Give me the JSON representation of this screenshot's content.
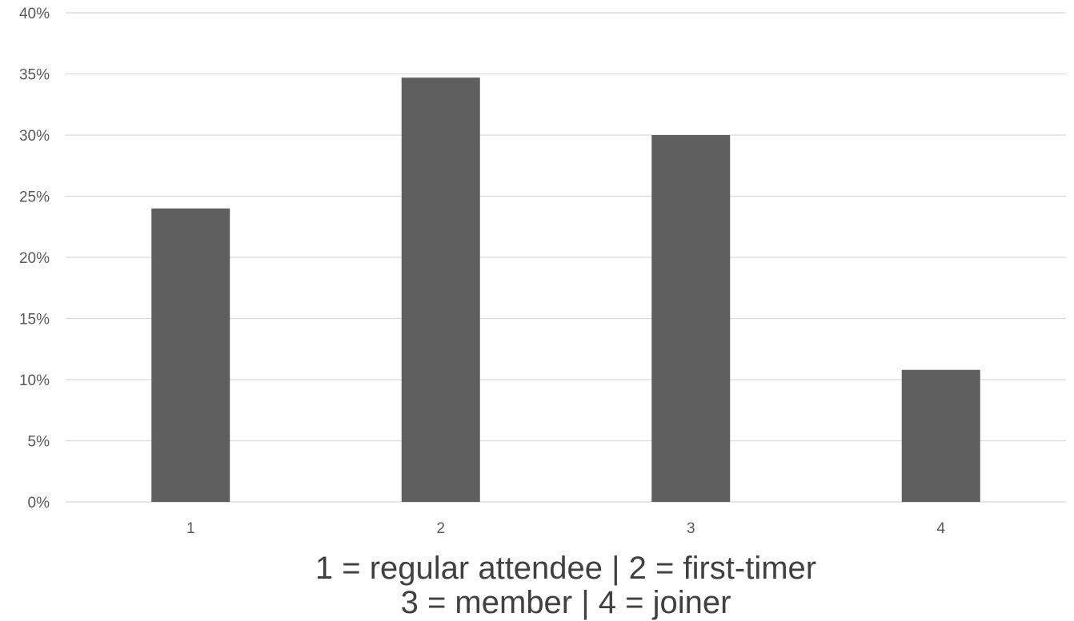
{
  "chart_data": {
    "type": "bar",
    "title": "",
    "xlabel": "",
    "ylabel": "",
    "categories": [
      "1",
      "2",
      "3",
      "4"
    ],
    "values": [
      24,
      34.7,
      30,
      10.8
    ],
    "value_unit": "%",
    "ylim": [
      0,
      40
    ],
    "yticks": [
      0,
      5,
      10,
      15,
      20,
      25,
      30,
      35,
      40
    ],
    "ytick_labels": [
      "0%",
      "5%",
      "10%",
      "15%",
      "20%",
      "25%",
      "30%",
      "35%",
      "40%"
    ],
    "grid": true,
    "legend": "none",
    "bar_color": "#5f5f5f",
    "gridline_color": "#d9d9d9",
    "annotation_lines": [
      "1 = regular attendee | 2 = first-timer",
      "3 = member | 4 = joiner"
    ]
  }
}
